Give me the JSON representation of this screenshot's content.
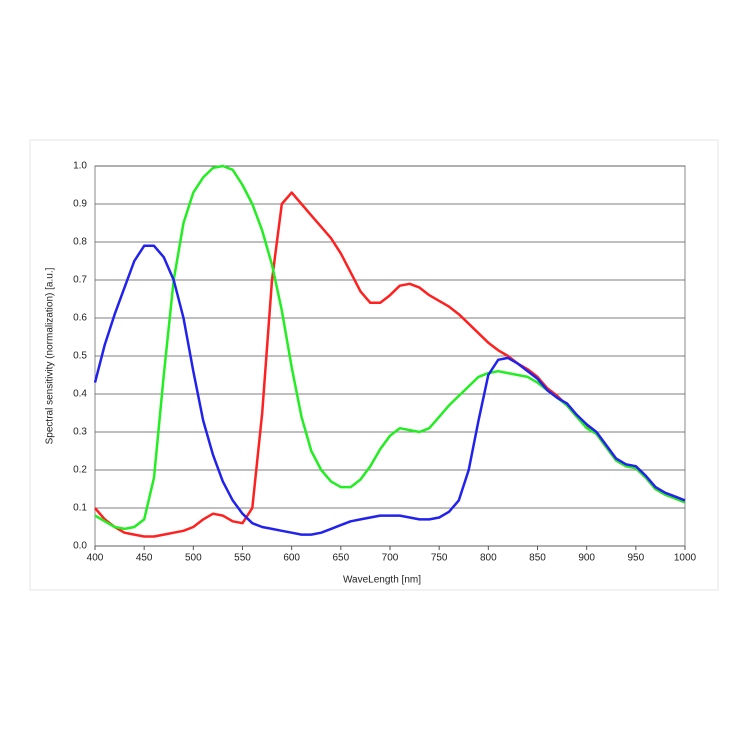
{
  "chart_data": {
    "type": "line",
    "xlabel": "WaveLength [nm]",
    "ylabel": "Spectral sensitivity (normalization) [a.u.]",
    "x": [
      400,
      410,
      420,
      430,
      440,
      450,
      460,
      470,
      480,
      490,
      500,
      510,
      520,
      530,
      540,
      550,
      560,
      570,
      580,
      590,
      600,
      610,
      620,
      630,
      640,
      650,
      660,
      670,
      680,
      690,
      700,
      710,
      720,
      730,
      740,
      750,
      760,
      770,
      780,
      790,
      800,
      810,
      820,
      830,
      840,
      850,
      860,
      870,
      880,
      890,
      900,
      910,
      920,
      930,
      940,
      950,
      960,
      970,
      980,
      990,
      1000
    ],
    "series": [
      {
        "color": "#ff2020",
        "values": [
          0.1,
          0.07,
          0.05,
          0.035,
          0.03,
          0.025,
          0.025,
          0.03,
          0.035,
          0.04,
          0.05,
          0.07,
          0.085,
          0.08,
          0.065,
          0.06,
          0.1,
          0.35,
          0.7,
          0.9,
          0.93,
          0.9,
          0.87,
          0.84,
          0.81,
          0.77,
          0.72,
          0.67,
          0.64,
          0.64,
          0.66,
          0.685,
          0.69,
          0.68,
          0.66,
          0.645,
          0.63,
          0.61,
          0.585,
          0.56,
          0.535,
          0.515,
          0.5,
          0.48,
          0.465,
          0.445,
          0.415,
          0.395,
          0.37,
          0.34,
          0.315,
          0.295,
          0.26,
          0.225,
          0.21,
          0.205,
          0.18,
          0.15,
          0.135,
          0.125,
          0.115
        ]
      },
      {
        "color": "#22ee22",
        "values": [
          0.08,
          0.065,
          0.05,
          0.045,
          0.05,
          0.07,
          0.18,
          0.45,
          0.7,
          0.85,
          0.93,
          0.97,
          0.995,
          1.0,
          0.99,
          0.95,
          0.9,
          0.83,
          0.74,
          0.62,
          0.47,
          0.34,
          0.25,
          0.2,
          0.17,
          0.155,
          0.155,
          0.175,
          0.21,
          0.255,
          0.29,
          0.31,
          0.305,
          0.3,
          0.31,
          0.34,
          0.37,
          0.395,
          0.42,
          0.445,
          0.455,
          0.46,
          0.455,
          0.45,
          0.445,
          0.43,
          0.41,
          0.39,
          0.37,
          0.34,
          0.31,
          0.295,
          0.26,
          0.225,
          0.21,
          0.205,
          0.18,
          0.15,
          0.135,
          0.125,
          0.115
        ]
      },
      {
        "color": "#2222ee",
        "values": [
          0.43,
          0.53,
          0.61,
          0.68,
          0.75,
          0.79,
          0.79,
          0.76,
          0.7,
          0.6,
          0.46,
          0.33,
          0.24,
          0.17,
          0.12,
          0.085,
          0.06,
          0.05,
          0.045,
          0.04,
          0.035,
          0.03,
          0.03,
          0.035,
          0.045,
          0.055,
          0.065,
          0.07,
          0.075,
          0.08,
          0.08,
          0.08,
          0.075,
          0.07,
          0.07,
          0.075,
          0.09,
          0.12,
          0.2,
          0.33,
          0.45,
          0.49,
          0.495,
          0.48,
          0.46,
          0.44,
          0.41,
          0.39,
          0.375,
          0.345,
          0.32,
          0.3,
          0.265,
          0.23,
          0.215,
          0.21,
          0.185,
          0.155,
          0.14,
          0.13,
          0.12
        ]
      }
    ],
    "xlim": [
      400,
      1000
    ],
    "xticks": [
      400,
      450,
      500,
      550,
      600,
      650,
      700,
      750,
      800,
      850,
      900,
      950,
      1000
    ],
    "ylim": [
      0,
      1
    ],
    "yticks": [
      {
        "value": 0,
        "label": "0.0"
      },
      0.1,
      0.2,
      0.3,
      0.4,
      0.5,
      0.6,
      0.7,
      0.8,
      0.9,
      {
        "value": 1,
        "label": "1.0"
      }
    ],
    "grid": true
  }
}
